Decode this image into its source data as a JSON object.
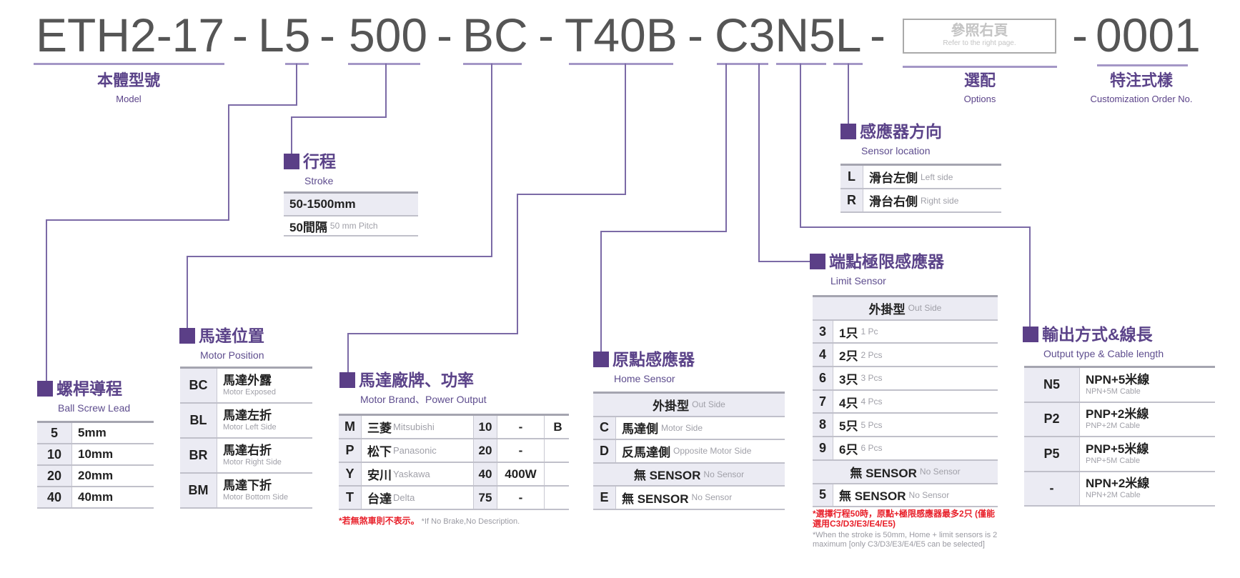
{
  "model_code": {
    "parts": [
      "ETH2-17",
      "L5",
      "500",
      "BC",
      "T40B",
      "C3N5L",
      "0001"
    ],
    "separator": "-",
    "options_box": {
      "zh": "參照右頁",
      "en": "Refer to the right page."
    }
  },
  "labels": {
    "model": {
      "zh": "本體型號",
      "en": "Model"
    },
    "options": {
      "zh": "選配",
      "en": "Options"
    },
    "custom": {
      "zh": "特注式樣",
      "en": "Customization Order No."
    }
  },
  "colors": {
    "accent": "#5b3f87",
    "connector": "#7b6aa6",
    "note_red": "#e8202a"
  },
  "sections": {
    "stroke": {
      "title": "行程",
      "subtitle": "Stroke",
      "rows": [
        {
          "type": "gray",
          "zh": "50-1500mm"
        },
        {
          "zh": "50間隔",
          "en": "50 mm Pitch"
        }
      ]
    },
    "lead": {
      "title": "螺桿導程",
      "subtitle": "Ball Screw Lead",
      "rows": [
        {
          "code": "5",
          "zh": "5mm"
        },
        {
          "code": "10",
          "zh": "10mm"
        },
        {
          "code": "20",
          "zh": "20mm"
        },
        {
          "code": "40",
          "zh": "40mm"
        }
      ]
    },
    "motor_position": {
      "title": "馬達位置",
      "subtitle": "Motor Position",
      "rows": [
        {
          "code": "BC",
          "zh": "馬達外露",
          "en": "Motor Exposed"
        },
        {
          "code": "BL",
          "zh": "馬達左折",
          "en": "Motor Left Side"
        },
        {
          "code": "BR",
          "zh": "馬達右折",
          "en": "Motor Right Side"
        },
        {
          "code": "BM",
          "zh": "馬達下折",
          "en": "Motor Bottom Side"
        }
      ]
    },
    "motor_brand": {
      "title": "馬達廠牌、功率",
      "subtitle": "Motor Brand、Power Output",
      "rows": [
        {
          "code": "M",
          "zh": "三菱",
          "en": "Mitsubishi",
          "power_code": "10",
          "power": "-",
          "brake": "B"
        },
        {
          "code": "P",
          "zh": "松下",
          "en": "Panasonic",
          "power_code": "20",
          "power": "-",
          "brake": ""
        },
        {
          "code": "Y",
          "zh": "安川",
          "en": "Yaskawa",
          "power_code": "40",
          "power": "400W",
          "brake": ""
        },
        {
          "code": "T",
          "zh": "台達",
          "en": "Delta",
          "power_code": "75",
          "power": "-",
          "brake": ""
        }
      ],
      "note_red": "*若無煞車則不表示。",
      "note_gray": "*If No Brake,No Description."
    },
    "home_sensor": {
      "title": "原點感應器",
      "subtitle": "Home Sensor",
      "rows": [
        {
          "type": "header",
          "zh": "外掛型",
          "en": "Out Side"
        },
        {
          "code": "C",
          "zh": "馬達側",
          "en": "Motor Side"
        },
        {
          "code": "D",
          "zh": "反馬達側",
          "en": "Opposite Motor Side"
        },
        {
          "type": "header",
          "zh": "無 SENSOR",
          "en": "No Sensor"
        },
        {
          "code": "E",
          "zh": "無 SENSOR",
          "en": "No Sensor"
        }
      ]
    },
    "limit_sensor": {
      "title": "端點極限感應器",
      "subtitle": "Limit Sensor",
      "rows": [
        {
          "type": "header",
          "zh": "外掛型",
          "en": "Out Side"
        },
        {
          "code": "3",
          "zh": "1只",
          "en": "1 Pc"
        },
        {
          "code": "4",
          "zh": "2只",
          "en": "2 Pcs"
        },
        {
          "code": "6",
          "zh": "3只",
          "en": "3 Pcs"
        },
        {
          "code": "7",
          "zh": "4只",
          "en": "4 Pcs"
        },
        {
          "code": "8",
          "zh": "5只",
          "en": "5 Pcs"
        },
        {
          "code": "9",
          "zh": "6只",
          "en": "6 Pcs"
        },
        {
          "type": "header",
          "zh": "無 SENSOR",
          "en": "No Sensor"
        },
        {
          "code": "5",
          "zh": "無 SENSOR",
          "en": "No Sensor"
        }
      ],
      "note_red": "*選擇行程50時，原點+極限感應器最多2只 (僅能選用C3/D3/E3/E4/E5)",
      "note_gray": "*When the stroke is 50mm, Home + limit sensors is 2 maximum [only C3/D3/E3/E4/E5 can be selected]"
    },
    "sensor_location": {
      "title": "感應器方向",
      "subtitle": "Sensor location",
      "rows": [
        {
          "code": "L",
          "zh": "滑台左側",
          "en": "Left side"
        },
        {
          "code": "R",
          "zh": "滑台右側",
          "en": "Right side"
        }
      ]
    },
    "output": {
      "title": "輸出方式&線長",
      "subtitle": "Output type & Cable length",
      "rows": [
        {
          "code": "N5",
          "zh": "NPN+5米線",
          "en": "NPN+5M Cable"
        },
        {
          "code": "P2",
          "zh": "PNP+2米線",
          "en": "PNP+2M Cable"
        },
        {
          "code": "P5",
          "zh": "PNP+5米線",
          "en": "PNP+5M Cable"
        },
        {
          "code": "-",
          "zh": "NPN+2米線",
          "en": "NPN+2M Cable"
        }
      ]
    }
  }
}
